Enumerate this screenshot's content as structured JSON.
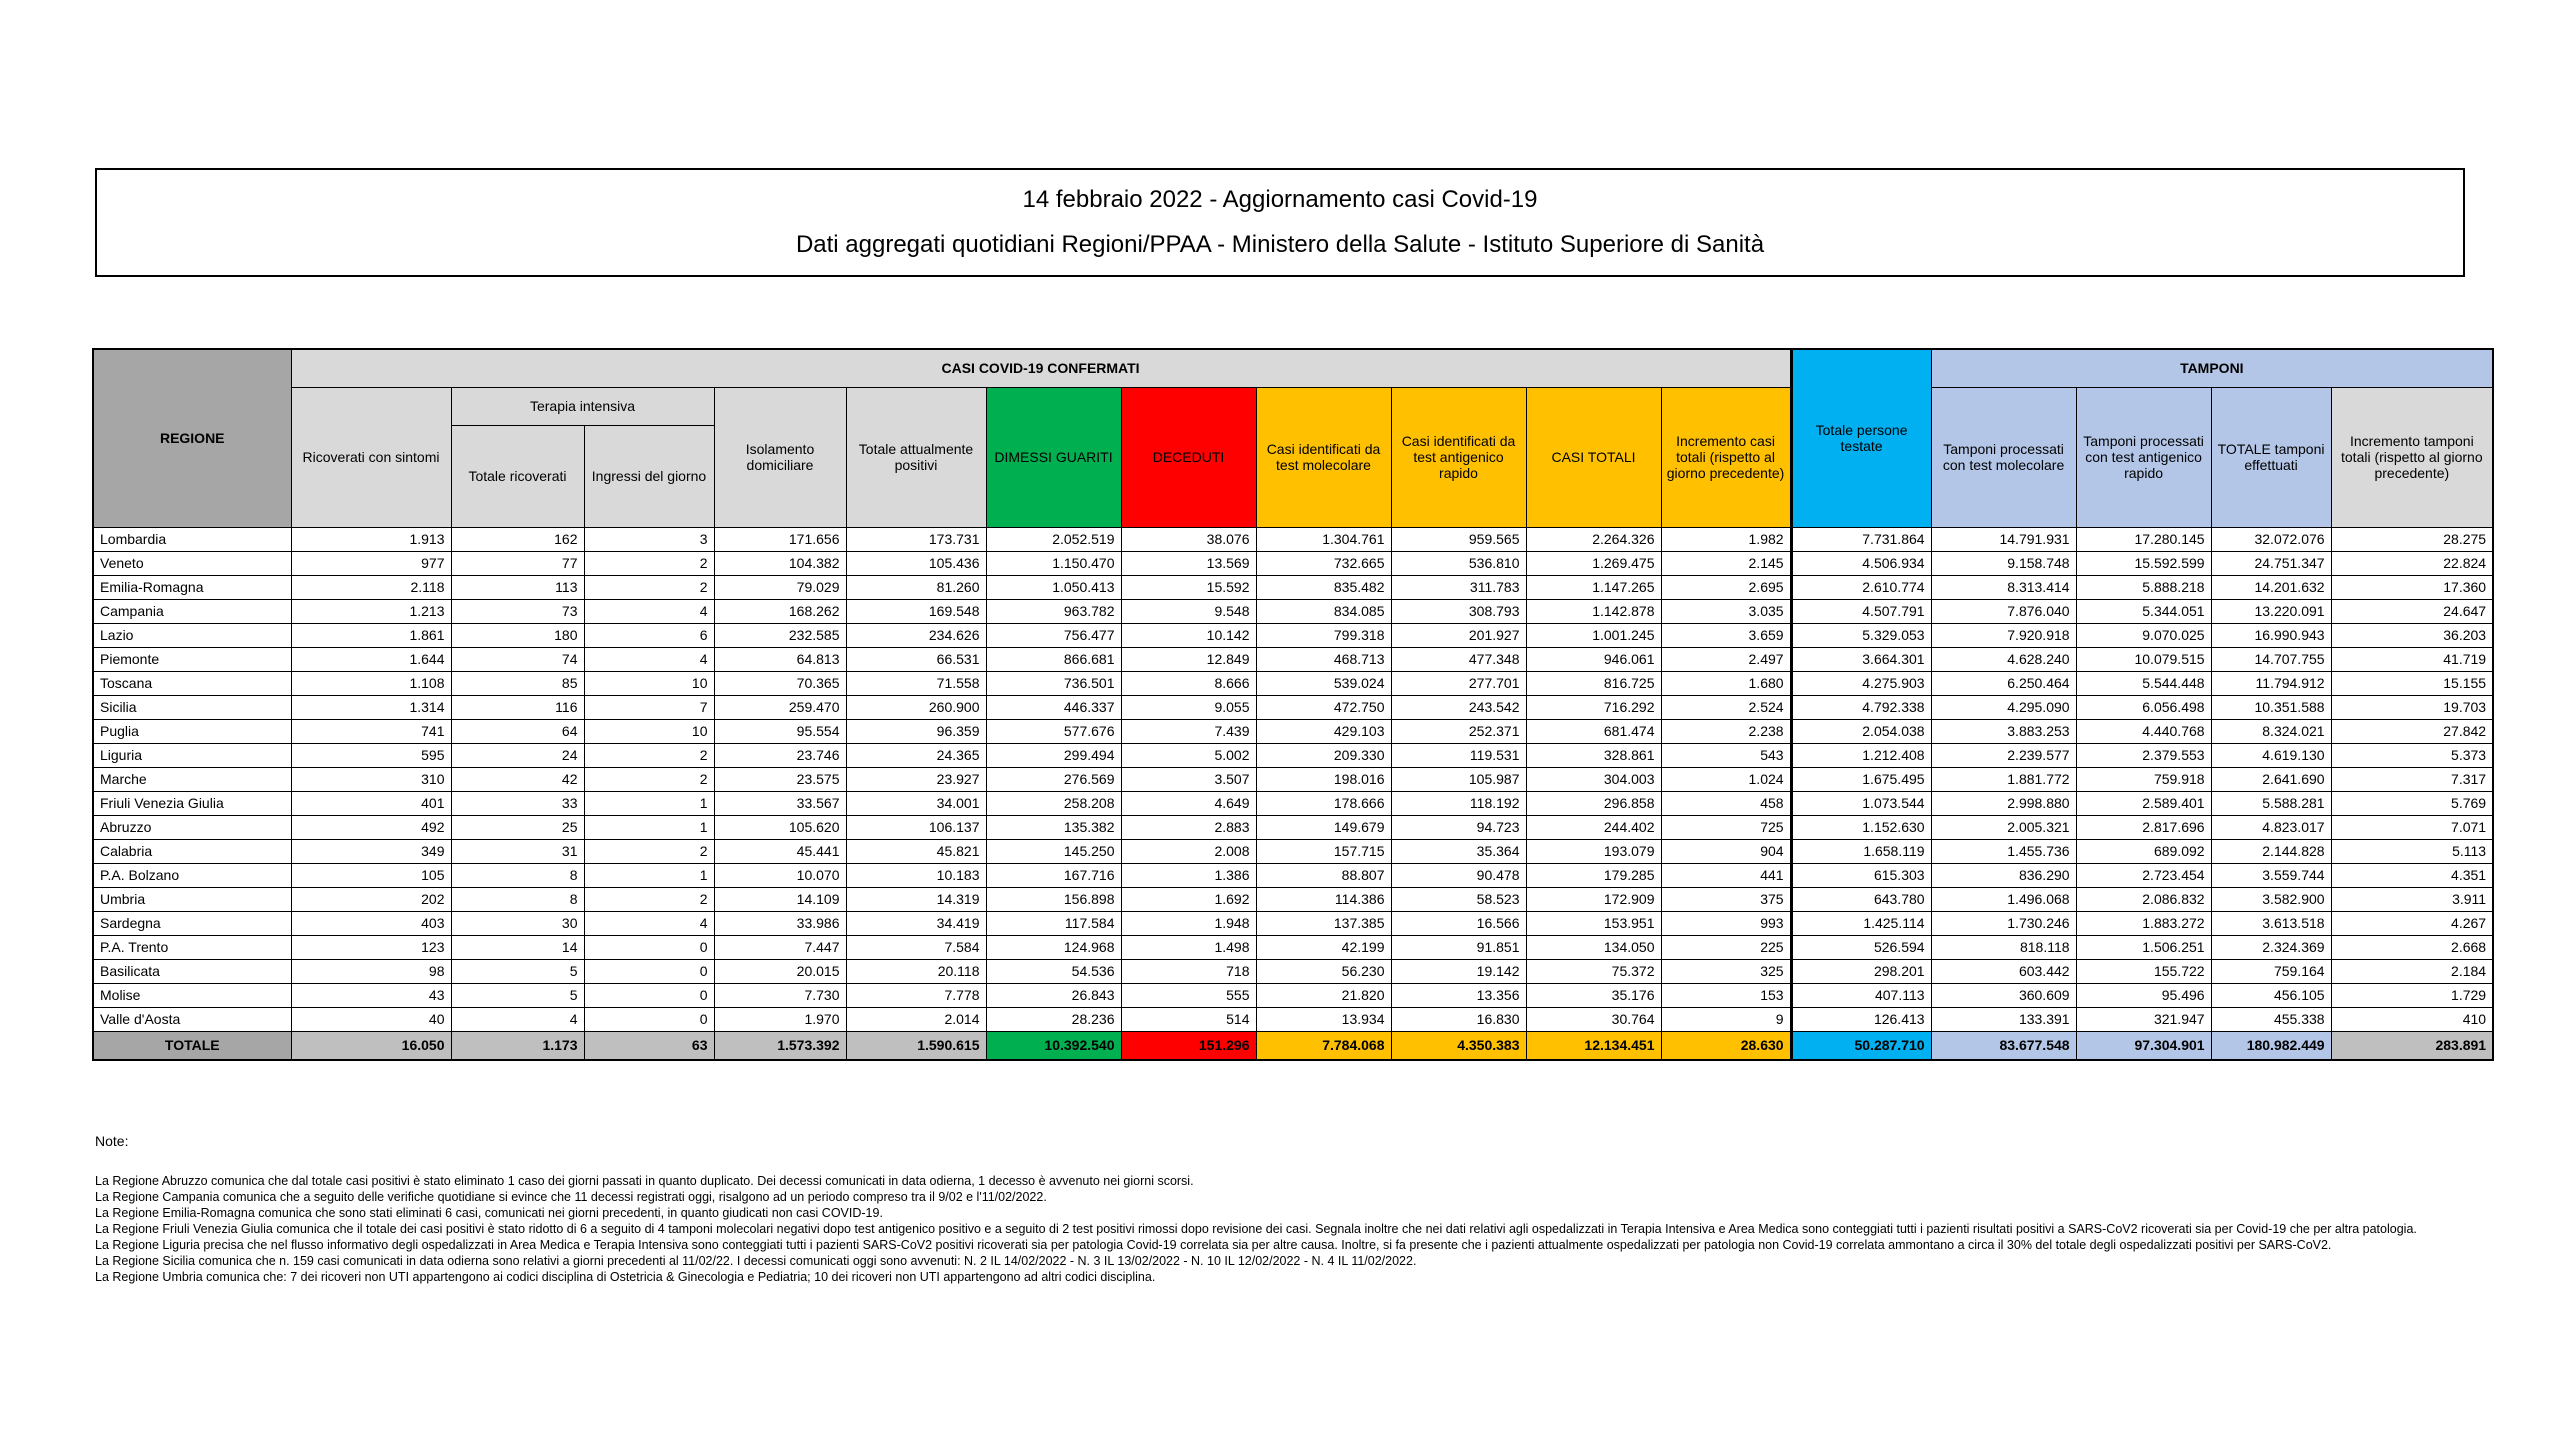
{
  "title": {
    "line1": "14 febbraio 2022 - Aggiornamento casi Covid-19",
    "line2": "Dati aggregati quotidiani Regioni/PPAA - Ministero della Salute - Istituto Superiore di Sanità"
  },
  "colors": {
    "header_gray": "#D9D9D9",
    "header_dark_gray": "#A6A6A6",
    "total_gray": "#BFBFBF",
    "green": "#00B050",
    "red": "#FF0000",
    "amber": "#FFC000",
    "cyan": "#00B0F0",
    "light_blue": "#B4C6E7"
  },
  "table": {
    "headers": {
      "regione": "REGIONE",
      "casi_confermati": "CASI COVID-19 CONFERMATI",
      "tamponi_group": "TAMPONI",
      "terapia_intensiva": "Terapia intensiva",
      "ricoverati": "Ricoverati con sintomi",
      "totale_ricoverati": "Totale ricoverati",
      "ingressi": "Ingressi del giorno",
      "isolamento": "Isolamento domiciliare",
      "attualmente_positivi": "Totale attualmente positivi",
      "dimessi": "DIMESSI GUARITI",
      "deceduti": "DECEDUTI",
      "casi_molecolare": "Casi identificati da test molecolare",
      "casi_antigenico": "Casi identificati da test antigenico rapido",
      "casi_totali": "CASI TOTALI",
      "incremento_casi": "Incremento casi totali (rispetto al giorno precedente)",
      "persone_testate": "Totale persone testate",
      "tamponi_molecolare": "Tamponi processati con test molecolare",
      "tamponi_antigenico": "Tamponi processati con test antigenico rapido",
      "tamponi_totale": "TOTALE tamponi effettuati",
      "incremento_tamponi": "Incremento tamponi totali (rispetto al giorno precedente)"
    },
    "rows": [
      [
        "Lombardia",
        "1.913",
        "162",
        "3",
        "171.656",
        "173.731",
        "2.052.519",
        "38.076",
        "1.304.761",
        "959.565",
        "2.264.326",
        "1.982",
        "7.731.864",
        "14.791.931",
        "17.280.145",
        "32.072.076",
        "28.275"
      ],
      [
        "Veneto",
        "977",
        "77",
        "2",
        "104.382",
        "105.436",
        "1.150.470",
        "13.569",
        "732.665",
        "536.810",
        "1.269.475",
        "2.145",
        "4.506.934",
        "9.158.748",
        "15.592.599",
        "24.751.347",
        "22.824"
      ],
      [
        "Emilia-Romagna",
        "2.118",
        "113",
        "2",
        "79.029",
        "81.260",
        "1.050.413",
        "15.592",
        "835.482",
        "311.783",
        "1.147.265",
        "2.695",
        "2.610.774",
        "8.313.414",
        "5.888.218",
        "14.201.632",
        "17.360"
      ],
      [
        "Campania",
        "1.213",
        "73",
        "4",
        "168.262",
        "169.548",
        "963.782",
        "9.548",
        "834.085",
        "308.793",
        "1.142.878",
        "3.035",
        "4.507.791",
        "7.876.040",
        "5.344.051",
        "13.220.091",
        "24.647"
      ],
      [
        "Lazio",
        "1.861",
        "180",
        "6",
        "232.585",
        "234.626",
        "756.477",
        "10.142",
        "799.318",
        "201.927",
        "1.001.245",
        "3.659",
        "5.329.053",
        "7.920.918",
        "9.070.025",
        "16.990.943",
        "36.203"
      ],
      [
        "Piemonte",
        "1.644",
        "74",
        "4",
        "64.813",
        "66.531",
        "866.681",
        "12.849",
        "468.713",
        "477.348",
        "946.061",
        "2.497",
        "3.664.301",
        "4.628.240",
        "10.079.515",
        "14.707.755",
        "41.719"
      ],
      [
        "Toscana",
        "1.108",
        "85",
        "10",
        "70.365",
        "71.558",
        "736.501",
        "8.666",
        "539.024",
        "277.701",
        "816.725",
        "1.680",
        "4.275.903",
        "6.250.464",
        "5.544.448",
        "11.794.912",
        "15.155"
      ],
      [
        "Sicilia",
        "1.314",
        "116",
        "7",
        "259.470",
        "260.900",
        "446.337",
        "9.055",
        "472.750",
        "243.542",
        "716.292",
        "2.524",
        "4.792.338",
        "4.295.090",
        "6.056.498",
        "10.351.588",
        "19.703"
      ],
      [
        "Puglia",
        "741",
        "64",
        "10",
        "95.554",
        "96.359",
        "577.676",
        "7.439",
        "429.103",
        "252.371",
        "681.474",
        "2.238",
        "2.054.038",
        "3.883.253",
        "4.440.768",
        "8.324.021",
        "27.842"
      ],
      [
        "Liguria",
        "595",
        "24",
        "2",
        "23.746",
        "24.365",
        "299.494",
        "5.002",
        "209.330",
        "119.531",
        "328.861",
        "543",
        "1.212.408",
        "2.239.577",
        "2.379.553",
        "4.619.130",
        "5.373"
      ],
      [
        "Marche",
        "310",
        "42",
        "2",
        "23.575",
        "23.927",
        "276.569",
        "3.507",
        "198.016",
        "105.987",
        "304.003",
        "1.024",
        "1.675.495",
        "1.881.772",
        "759.918",
        "2.641.690",
        "7.317"
      ],
      [
        "Friuli Venezia Giulia",
        "401",
        "33",
        "1",
        "33.567",
        "34.001",
        "258.208",
        "4.649",
        "178.666",
        "118.192",
        "296.858",
        "458",
        "1.073.544",
        "2.998.880",
        "2.589.401",
        "5.588.281",
        "5.769"
      ],
      [
        "Abruzzo",
        "492",
        "25",
        "1",
        "105.620",
        "106.137",
        "135.382",
        "2.883",
        "149.679",
        "94.723",
        "244.402",
        "725",
        "1.152.630",
        "2.005.321",
        "2.817.696",
        "4.823.017",
        "7.071"
      ],
      [
        "Calabria",
        "349",
        "31",
        "2",
        "45.441",
        "45.821",
        "145.250",
        "2.008",
        "157.715",
        "35.364",
        "193.079",
        "904",
        "1.658.119",
        "1.455.736",
        "689.092",
        "2.144.828",
        "5.113"
      ],
      [
        "P.A. Bolzano",
        "105",
        "8",
        "1",
        "10.070",
        "10.183",
        "167.716",
        "1.386",
        "88.807",
        "90.478",
        "179.285",
        "441",
        "615.303",
        "836.290",
        "2.723.454",
        "3.559.744",
        "4.351"
      ],
      [
        "Umbria",
        "202",
        "8",
        "2",
        "14.109",
        "14.319",
        "156.898",
        "1.692",
        "114.386",
        "58.523",
        "172.909",
        "375",
        "643.780",
        "1.496.068",
        "2.086.832",
        "3.582.900",
        "3.911"
      ],
      [
        "Sardegna",
        "403",
        "30",
        "4",
        "33.986",
        "34.419",
        "117.584",
        "1.948",
        "137.385",
        "16.566",
        "153.951",
        "993",
        "1.425.114",
        "1.730.246",
        "1.883.272",
        "3.613.518",
        "4.267"
      ],
      [
        "P.A. Trento",
        "123",
        "14",
        "0",
        "7.447",
        "7.584",
        "124.968",
        "1.498",
        "42.199",
        "91.851",
        "134.050",
        "225",
        "526.594",
        "818.118",
        "1.506.251",
        "2.324.369",
        "2.668"
      ],
      [
        "Basilicata",
        "98",
        "5",
        "0",
        "20.015",
        "20.118",
        "54.536",
        "718",
        "56.230",
        "19.142",
        "75.372",
        "325",
        "298.201",
        "603.442",
        "155.722",
        "759.164",
        "2.184"
      ],
      [
        "Molise",
        "43",
        "5",
        "0",
        "7.730",
        "7.778",
        "26.843",
        "555",
        "21.820",
        "13.356",
        "35.176",
        "153",
        "407.113",
        "360.609",
        "95.496",
        "456.105",
        "1.729"
      ],
      [
        "Valle d'Aosta",
        "40",
        "4",
        "0",
        "1.970",
        "2.014",
        "28.236",
        "514",
        "13.934",
        "16.830",
        "30.764",
        "9",
        "126.413",
        "133.391",
        "321.947",
        "455.338",
        "410"
      ]
    ],
    "total": [
      "TOTALE",
      "16.050",
      "1.173",
      "63",
      "1.573.392",
      "1.590.615",
      "10.392.540",
      "151.296",
      "7.784.068",
      "4.350.383",
      "12.134.451",
      "28.630",
      "50.287.710",
      "83.677.548",
      "97.304.901",
      "180.982.449",
      "283.891"
    ],
    "total_color_keys": [
      "header_dark_gray",
      "total_gray",
      "total_gray",
      "total_gray",
      "total_gray",
      "total_gray",
      "green",
      "red",
      "amber",
      "amber",
      "amber",
      "amber",
      "cyan",
      "light_blue",
      "light_blue",
      "light_blue",
      "total_gray"
    ]
  },
  "notes": {
    "title": "Note:",
    "items": [
      "La Regione Abruzzo  comunica che dal totale casi positivi è stato eliminato 1 caso dei giorni passati in quanto duplicato. Dei decessi comunicati in data odierna, 1 decesso è avvenuto nei giorni scorsi.",
      "La Regione Campania comunica che a seguito delle verifiche quotidiane si evince che 11 decessi registrati oggi, risalgono ad un periodo compreso tra il 9/02 e l'11/02/2022.",
      "La Regione Emilia-Romagna  comunica che sono stati eliminati 6 casi, comunicati nei giorni precedenti, in quanto giudicati non casi COVID-19.",
      "La Regione Friuli Venezia Giulia comunica che il totale dei casi positivi è stato ridotto di 6 a seguito di 4 tamponi molecolari negativi dopo test antigenico positivo e a seguito di 2 test positivi rimossi dopo revisione dei casi. Segnala inoltre che nei dati relativi agli ospedalizzati in Terapia Intensiva e Area Medica sono conteggiati tutti i pazienti risultati positivi a SARS-CoV2 ricoverati sia per Covid-19 che per altra patologia.",
      "La Regione Liguria precisa che nel flusso informativo degli ospedalizzati in Area Medica e Terapia Intensiva sono conteggiati tutti i pazienti SARS-CoV2 positivi ricoverati sia per patologia Covid-19 correlata sia per altre causa. Inoltre, si fa presente che i pazienti attualmente ospedalizzati per patologia non Covid-19 correlata ammontano a circa il 30% del totale degli ospedalizzati positivi per SARS-CoV2.",
      "La Regione Sicilia comunica che n. 159 casi comunicati in data odierna sono relativi a giorni precedenti al 11/02/22. I decessi comunicati oggi sono avvenuti: N. 2 IL 14/02/2022 - N. 3 IL 13/02/2022 - N. 10 IL 12/02/2022 - N. 4 IL 11/02/2022.",
      "La Regione Umbria comunica che: 7 dei ricoveri non UTI appartengono ai codici disciplina di Ostetricia & Ginecologia e Pediatria; 10 dei ricoveri non UTI appartengono ad altri codici disciplina."
    ]
  }
}
